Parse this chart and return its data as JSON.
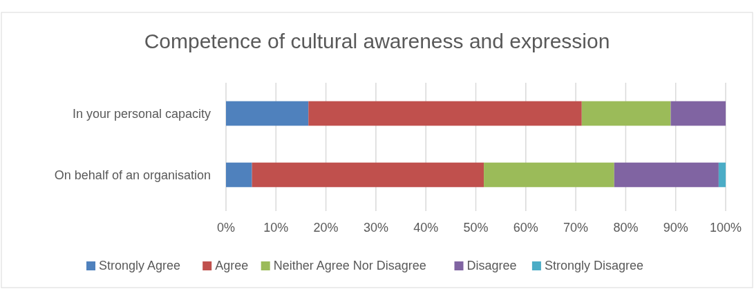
{
  "chart_data": {
    "type": "bar",
    "title": "Competence of cultural awareness and expression",
    "orientation": "horizontal",
    "stacked": true,
    "categories": [
      "In your personal capacity",
      "On behalf of an organisation"
    ],
    "series": [
      {
        "name": "Strongly Agree",
        "color": "#4f81bd",
        "values": [
          16.5,
          5.2
        ]
      },
      {
        "name": "Agree",
        "color": "#c0504d",
        "values": [
          54.7,
          46.4
        ]
      },
      {
        "name": "Neither Agree Nor Disagree",
        "color": "#9bbb59",
        "values": [
          17.8,
          26.1
        ]
      },
      {
        "name": "Disagree",
        "color": "#8064a2",
        "values": [
          11.0,
          20.9
        ]
      },
      {
        "name": "Strongly Disagree",
        "color": "#4bacc6",
        "values": [
          0,
          1.4
        ]
      }
    ],
    "xlim": [
      0,
      100
    ],
    "xticks": [
      {
        "value": 0,
        "label": "0%"
      },
      {
        "value": 10,
        "label": "10%"
      },
      {
        "value": 20,
        "label": "20%"
      },
      {
        "value": 30,
        "label": "30%"
      },
      {
        "value": 40,
        "label": "40%"
      },
      {
        "value": 50,
        "label": "50%"
      },
      {
        "value": 60,
        "label": "60%"
      },
      {
        "value": 70,
        "label": "70%"
      },
      {
        "value": 80,
        "label": "80%"
      },
      {
        "value": 90,
        "label": "90%"
      },
      {
        "value": 100,
        "label": "100%"
      }
    ],
    "grid": "x",
    "legend": "bottom"
  }
}
